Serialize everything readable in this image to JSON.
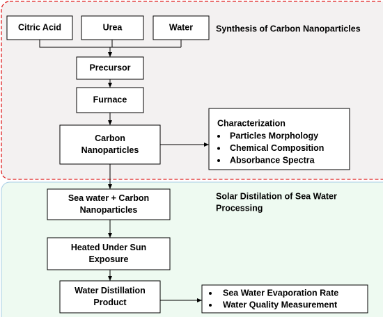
{
  "regions": [
    {
      "title": [
        "Synthesis of Carbon Nanoparticles"
      ]
    },
    {
      "title": [
        "Solar Distilation of Sea Water",
        "Processing"
      ]
    }
  ],
  "nodes": [
    {
      "label": [
        "Citric Acid"
      ]
    },
    {
      "label": [
        "Urea"
      ]
    },
    {
      "label": [
        "Water"
      ]
    },
    {
      "label": [
        "Precursor"
      ]
    },
    {
      "label": [
        "Furnace"
      ]
    },
    {
      "label": [
        "Carbon",
        "Nanoparticles"
      ]
    },
    {
      "label": [
        "Sea water + Carbon",
        "Nanoparticles"
      ]
    },
    {
      "label": [
        "Heated Under Sun",
        "Exposure"
      ]
    },
    {
      "label": [
        "Water Distillation",
        "Product"
      ]
    }
  ],
  "characterization": {
    "title": "Characterization",
    "items": [
      "Particles Morphology",
      "Chemical Composition",
      "Absorbance Spectra"
    ]
  },
  "outputs": {
    "items": [
      "Sea Water Evaporation Rate",
      "Water Quality Measurement"
    ]
  }
}
